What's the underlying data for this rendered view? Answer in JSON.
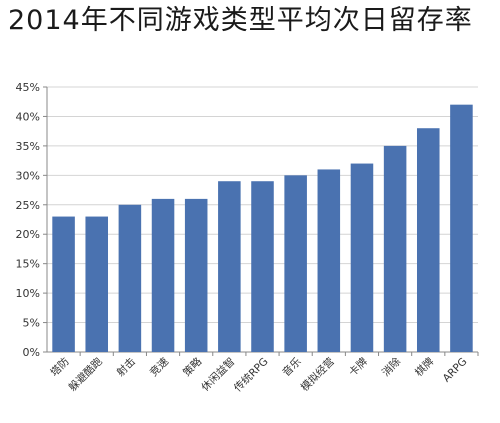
{
  "title": "2014年不同游戏类型平均次日留存率",
  "chart_data": {
    "type": "bar",
    "title": "2014年不同游戏类型平均次日留存率",
    "categories": [
      "塔防",
      "躲避酷跑",
      "射击",
      "竞速",
      "策略",
      "休闲益智",
      "传统RPG",
      "音乐",
      "模拟经营",
      "卡牌",
      "消除",
      "棋牌",
      "ARPG"
    ],
    "values": [
      23,
      23,
      25,
      26,
      26,
      29,
      29,
      30,
      31,
      32,
      35,
      38,
      42
    ],
    "ylim": [
      0,
      45
    ],
    "yticks": [
      0,
      5,
      10,
      15,
      20,
      25,
      30,
      35,
      40,
      45
    ],
    "ytick_labels": [
      "0%",
      "5%",
      "10%",
      "15%",
      "20%",
      "25%",
      "30%",
      "35%",
      "40%",
      "45%"
    ],
    "xlabel": "",
    "ylabel": "",
    "grid": true,
    "bar_color": "#4a72b0",
    "grid_color": "#d4d4d4",
    "axis_color": "#888888"
  }
}
